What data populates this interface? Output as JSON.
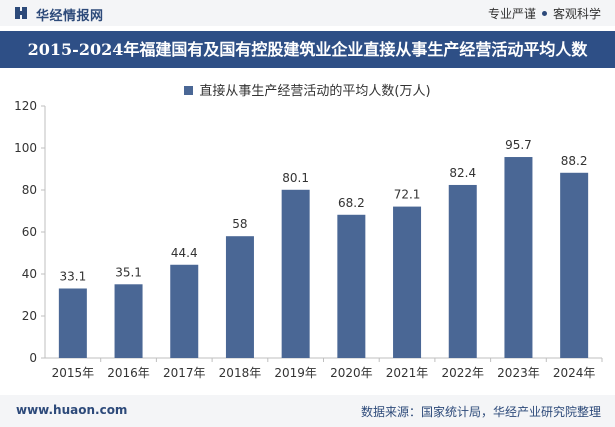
{
  "header": {
    "brand": "华经情报网",
    "slogan_left": "专业严谨",
    "slogan_right": "客观科学"
  },
  "footer": {
    "url": "www.huaon.com",
    "source": "数据来源：国家统计局，华经产业研究院整理"
  },
  "colors": {
    "bar": "#4a6795",
    "title_bg": "#2e4f86",
    "bars_bg": "#ffffff"
  },
  "chart_data": {
    "type": "bar",
    "title": "2015-2024年福建国有及国有控股建筑业企业直接从事生产经营活动平均人数",
    "categories": [
      "2015年",
      "2016年",
      "2017年",
      "2018年",
      "2019年",
      "2020年",
      "2021年",
      "2022年",
      "2023年",
      "2024年"
    ],
    "series": [
      {
        "name": "直接从事生产经营活动的平均人数(万人)",
        "values": [
          33.1,
          35.1,
          44.4,
          58,
          80.1,
          68.2,
          72.1,
          82.4,
          95.7,
          88.2
        ]
      }
    ],
    "value_labels": [
      "33.1",
      "35.1",
      "44.4",
      "58",
      "80.1",
      "68.2",
      "72.1",
      "82.4",
      "95.7",
      "88.2"
    ],
    "ylim": [
      0,
      120
    ],
    "yticks": [
      0,
      20,
      40,
      60,
      80,
      100,
      120
    ],
    "legend_position": "top-center",
    "grid": false
  }
}
